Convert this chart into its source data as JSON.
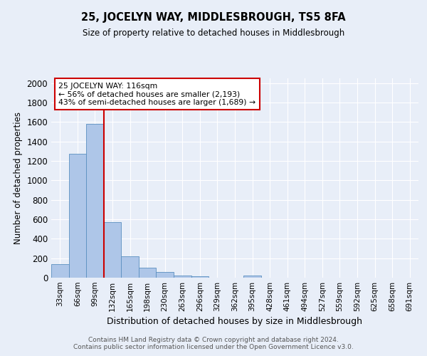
{
  "title": "25, JOCELYN WAY, MIDDLESBROUGH, TS5 8FA",
  "subtitle": "Size of property relative to detached houses in Middlesbrough",
  "xlabel": "Distribution of detached houses by size in Middlesbrough",
  "ylabel": "Number of detached properties",
  "footer_line1": "Contains HM Land Registry data © Crown copyright and database right 2024.",
  "footer_line2": "Contains public sector information licensed under the Open Government Licence v3.0.",
  "categories": [
    "33sqm",
    "66sqm",
    "99sqm",
    "132sqm",
    "165sqm",
    "198sqm",
    "230sqm",
    "263sqm",
    "296sqm",
    "329sqm",
    "362sqm",
    "395sqm",
    "428sqm",
    "461sqm",
    "494sqm",
    "527sqm",
    "559sqm",
    "592sqm",
    "625sqm",
    "658sqm",
    "691sqm"
  ],
  "values": [
    140,
    1275,
    1580,
    570,
    220,
    100,
    55,
    25,
    15,
    0,
    0,
    20,
    0,
    0,
    0,
    0,
    0,
    0,
    0,
    0,
    0
  ],
  "bar_color": "#aec6e8",
  "bar_edge_color": "#5a8fc0",
  "bg_color": "#e8eef8",
  "grid_color": "#ffffff",
  "red_line_color": "#cc0000",
  "annotation_text": "25 JOCELYN WAY: 116sqm\n← 56% of detached houses are smaller (2,193)\n43% of semi-detached houses are larger (1,689) →",
  "annotation_box_color": "#ffffff",
  "annotation_box_edge": "#cc0000",
  "ylim": [
    0,
    2050
  ],
  "yticks": [
    0,
    200,
    400,
    600,
    800,
    1000,
    1200,
    1400,
    1600,
    1800,
    2000
  ]
}
